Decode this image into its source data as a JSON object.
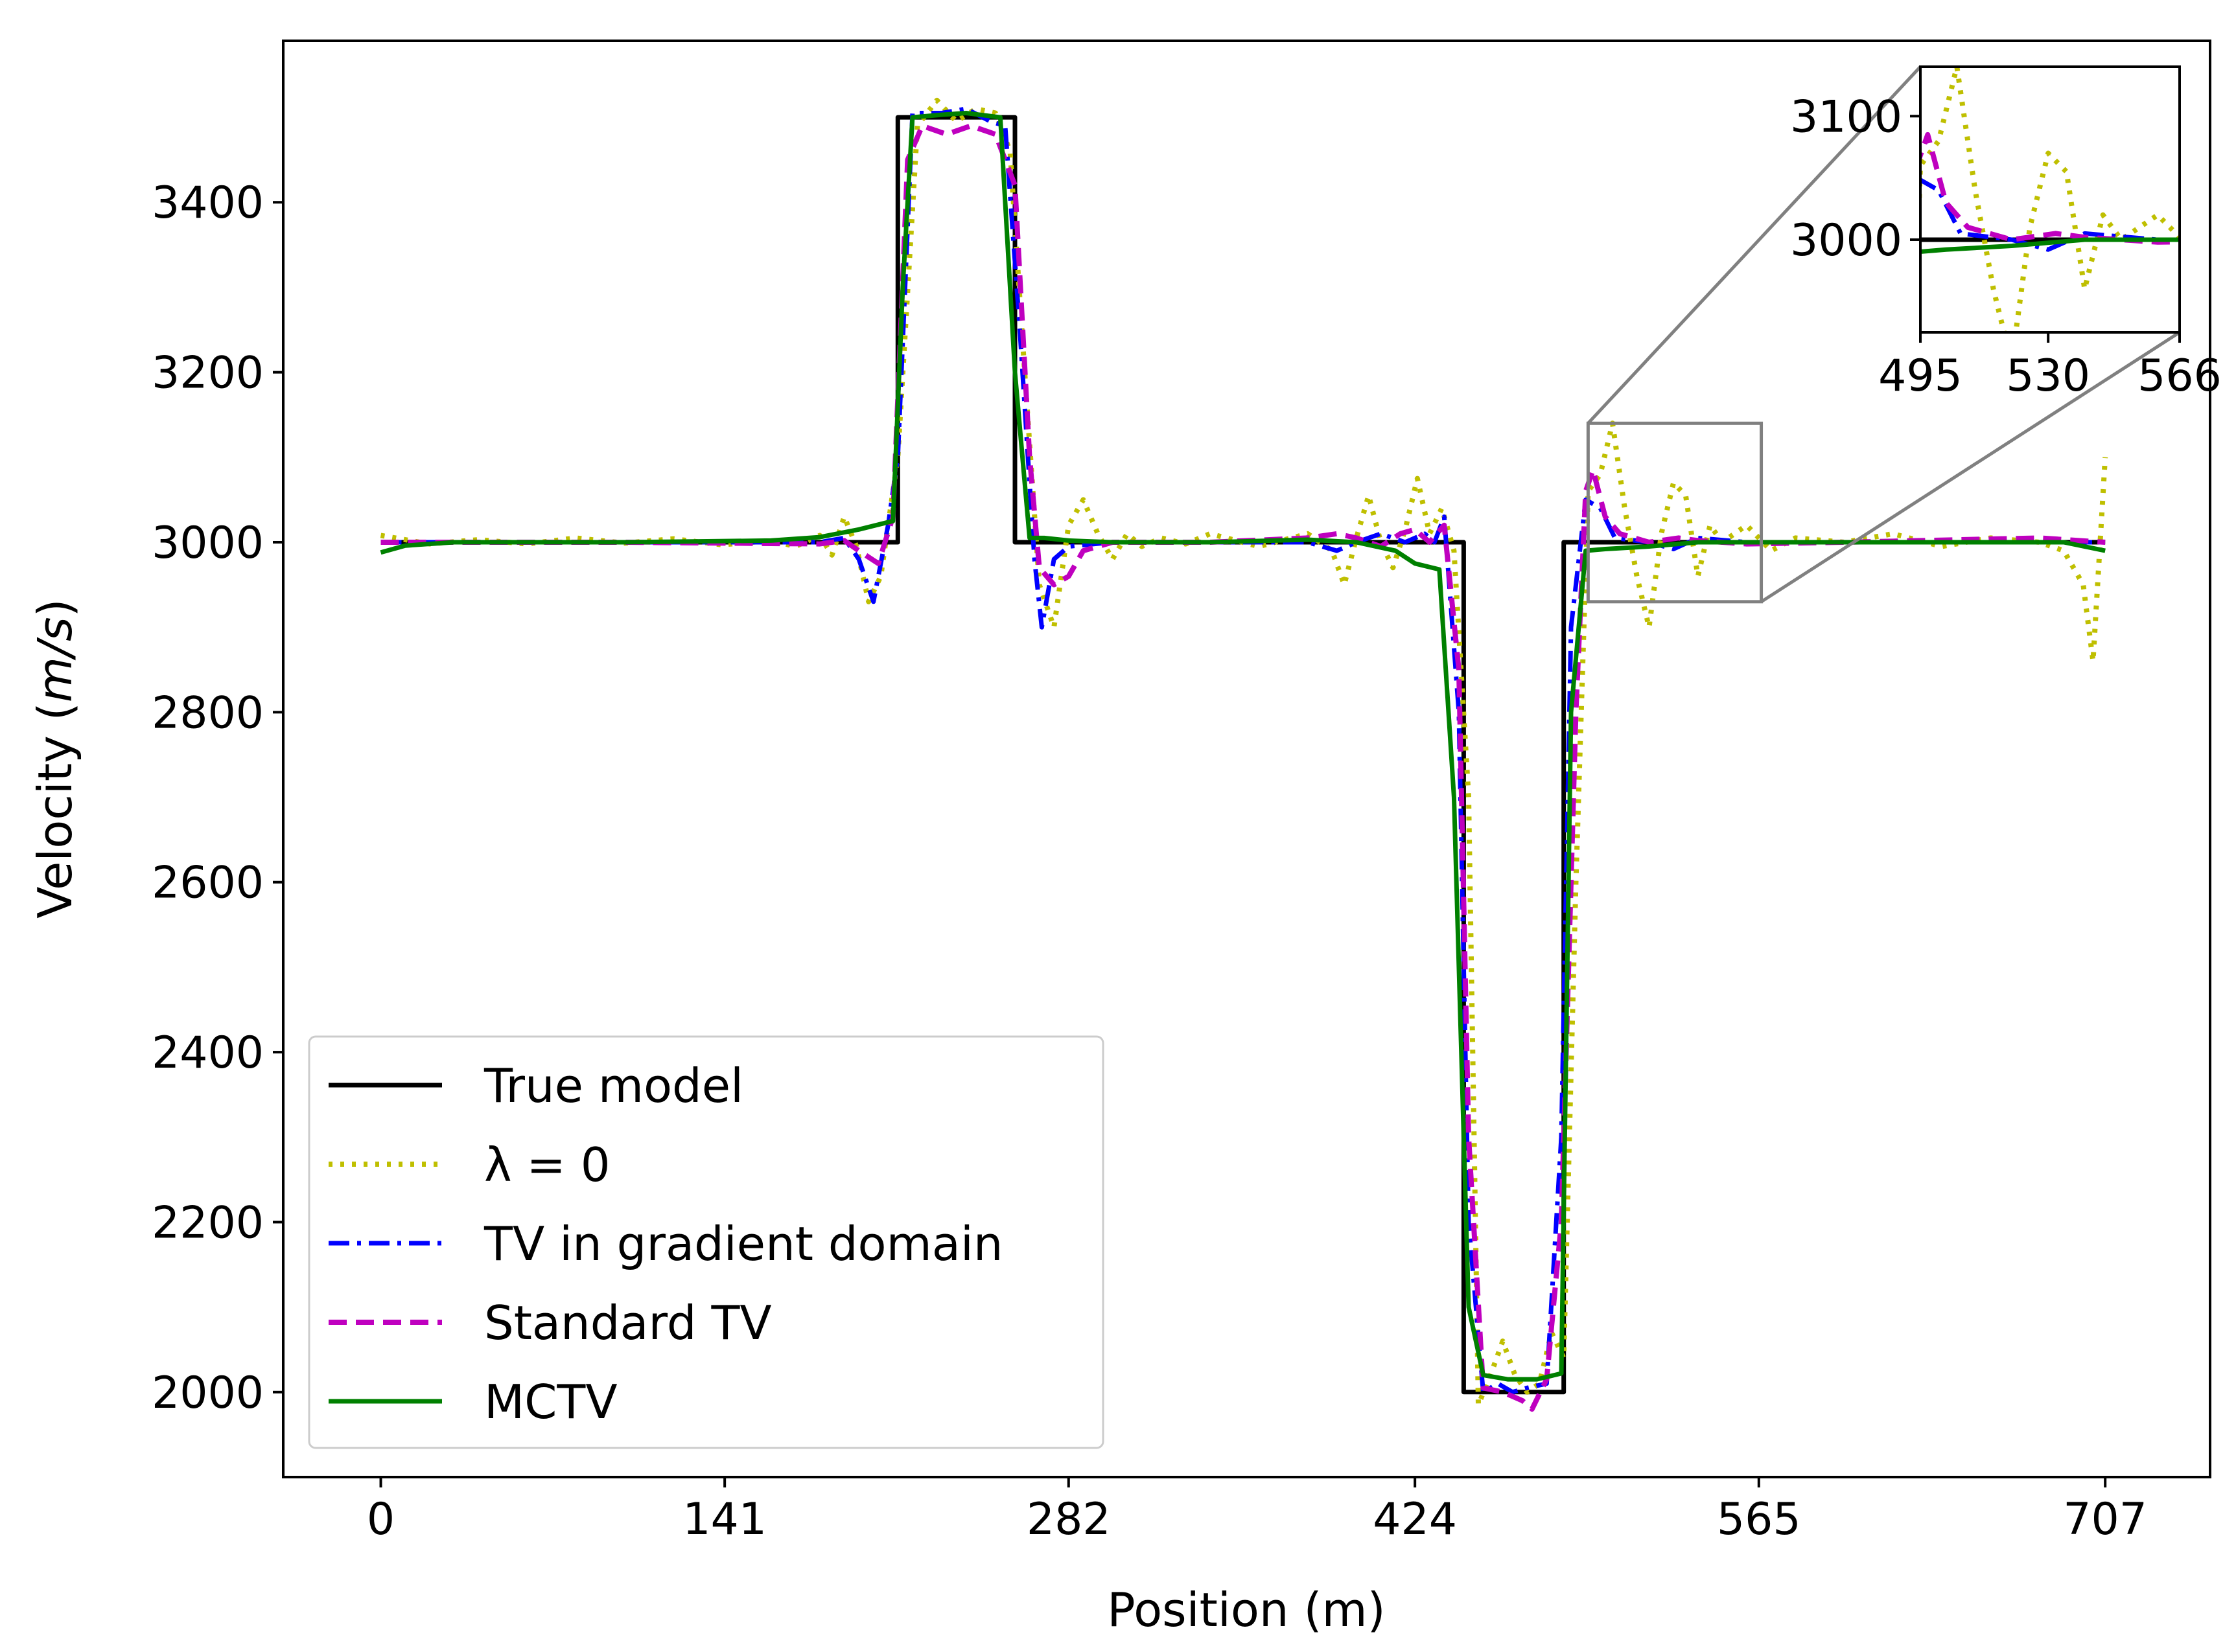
{
  "chart_data": {
    "type": "line",
    "title": "",
    "xlabel": "Position (m)",
    "ylabel": "Velocity (m/s)",
    "ylabel_parts": [
      "Velocity (",
      "m/s",
      ")"
    ],
    "xlim": [
      -40,
      750
    ],
    "ylim": [
      1900,
      3590
    ],
    "x_ticks": [
      0,
      141,
      282,
      424,
      565,
      707
    ],
    "y_ticks": [
      2000,
      2200,
      2400,
      2600,
      2800,
      3000,
      3200,
      3400
    ],
    "grid": false,
    "legend_position": "lower-left",
    "colors": {
      "true_model": "#000000",
      "lambda0": "#bfbf00",
      "tv_gradient": "#0000ff",
      "standard_tv": "#bf00bf",
      "mctv": "#008000"
    },
    "series": [
      {
        "name": "True model",
        "key": "true_model",
        "style": "solid",
        "points": [
          [
            0,
            3000
          ],
          [
            212,
            3000
          ],
          [
            212,
            3500
          ],
          [
            260,
            3500
          ],
          [
            260,
            3000
          ],
          [
            444,
            3000
          ],
          [
            444,
            2000
          ],
          [
            485,
            2000
          ],
          [
            485,
            3000
          ],
          [
            707,
            3000
          ]
        ]
      },
      {
        "name": "λ = 0",
        "key": "lambda0",
        "style": "dotted",
        "points": [
          [
            0,
            3008
          ],
          [
            20,
            2998
          ],
          [
            40,
            3003
          ],
          [
            60,
            2998
          ],
          [
            80,
            3005
          ],
          [
            100,
            2999
          ],
          [
            120,
            3004
          ],
          [
            140,
            2997
          ],
          [
            160,
            3002
          ],
          [
            170,
            2995
          ],
          [
            180,
            3008
          ],
          [
            185,
            2985
          ],
          [
            190,
            3030
          ],
          [
            195,
            2995
          ],
          [
            200,
            2930
          ],
          [
            205,
            2960
          ],
          [
            212,
            3100
          ],
          [
            220,
            3490
          ],
          [
            228,
            3520
          ],
          [
            236,
            3495
          ],
          [
            244,
            3510
          ],
          [
            252,
            3505
          ],
          [
            258,
            3460
          ],
          [
            264,
            3200
          ],
          [
            270,
            2950
          ],
          [
            276,
            2900
          ],
          [
            282,
            3020
          ],
          [
            288,
            3050
          ],
          [
            294,
            3010
          ],
          [
            300,
            2980
          ],
          [
            306,
            3010
          ],
          [
            312,
            2995
          ],
          [
            320,
            3005
          ],
          [
            330,
            2998
          ],
          [
            340,
            3010
          ],
          [
            360,
            2995
          ],
          [
            380,
            3010
          ],
          [
            390,
            2990
          ],
          [
            395,
            2950
          ],
          [
            400,
            3005
          ],
          [
            405,
            3055
          ],
          [
            410,
            3000
          ],
          [
            415,
            2970
          ],
          [
            420,
            3015
          ],
          [
            425,
            3075
          ],
          [
            430,
            3010
          ],
          [
            435,
            3040
          ],
          [
            440,
            2990
          ],
          [
            446,
            2700
          ],
          [
            450,
            1985
          ],
          [
            455,
            2020
          ],
          [
            460,
            2060
          ],
          [
            465,
            2020
          ],
          [
            470,
            2000
          ],
          [
            475,
            2010
          ],
          [
            480,
            2070
          ],
          [
            485,
            2040
          ],
          [
            490,
            2600
          ],
          [
            495,
            3060
          ],
          [
            500,
            3080
          ],
          [
            505,
            3140
          ],
          [
            510,
            3040
          ],
          [
            515,
            2960
          ],
          [
            520,
            2900
          ],
          [
            525,
            3010
          ],
          [
            530,
            3070
          ],
          [
            535,
            3055
          ],
          [
            540,
            2960
          ],
          [
            545,
            3020
          ],
          [
            550,
            3000
          ],
          [
            560,
            3020
          ],
          [
            570,
            2990
          ],
          [
            580,
            3005
          ],
          [
            600,
            3000
          ],
          [
            620,
            3010
          ],
          [
            640,
            2995
          ],
          [
            660,
            3005
          ],
          [
            680,
            3000
          ],
          [
            690,
            2990
          ],
          [
            698,
            2950
          ],
          [
            702,
            2860
          ],
          [
            707,
            3100
          ]
        ]
      },
      {
        "name": "TV in gradient domain",
        "key": "tv_gradient",
        "style": "dashdot",
        "points": [
          [
            0,
            3000
          ],
          [
            100,
            3000
          ],
          [
            180,
            3000
          ],
          [
            190,
            3005
          ],
          [
            196,
            2980
          ],
          [
            202,
            2930
          ],
          [
            208,
            3020
          ],
          [
            212,
            3100
          ],
          [
            218,
            3505
          ],
          [
            230,
            3505
          ],
          [
            240,
            3510
          ],
          [
            250,
            3495
          ],
          [
            256,
            3490
          ],
          [
            262,
            3250
          ],
          [
            268,
            2980
          ],
          [
            271,
            2900
          ],
          [
            276,
            2980
          ],
          [
            282,
            2995
          ],
          [
            300,
            3000
          ],
          [
            340,
            3000
          ],
          [
            380,
            3000
          ],
          [
            392,
            2990
          ],
          [
            400,
            3000
          ],
          [
            410,
            3010
          ],
          [
            420,
            3000
          ],
          [
            428,
            3010
          ],
          [
            432,
            3000
          ],
          [
            436,
            3030
          ],
          [
            442,
            2800
          ],
          [
            446,
            2200
          ],
          [
            452,
            2000
          ],
          [
            458,
            2010
          ],
          [
            464,
            2000
          ],
          [
            470,
            2005
          ],
          [
            478,
            2010
          ],
          [
            484,
            2300
          ],
          [
            488,
            2900
          ],
          [
            494,
            3050
          ],
          [
            500,
            3040
          ],
          [
            506,
            3005
          ],
          [
            520,
            3000
          ],
          [
            530,
            2992
          ],
          [
            540,
            3005
          ],
          [
            560,
            3000
          ],
          [
            600,
            3000
          ],
          [
            707,
            3000
          ]
        ]
      },
      {
        "name": "Standard TV",
        "key": "standard_tv",
        "style": "dashed",
        "points": [
          [
            0,
            3000
          ],
          [
            100,
            3000
          ],
          [
            180,
            2998
          ],
          [
            190,
            3002
          ],
          [
            196,
            2990
          ],
          [
            204,
            2975
          ],
          [
            210,
            3030
          ],
          [
            216,
            3450
          ],
          [
            222,
            3490
          ],
          [
            232,
            3480
          ],
          [
            242,
            3490
          ],
          [
            252,
            3480
          ],
          [
            260,
            3420
          ],
          [
            266,
            3100
          ],
          [
            270,
            2970
          ],
          [
            276,
            2950
          ],
          [
            282,
            2960
          ],
          [
            288,
            2990
          ],
          [
            300,
            3000
          ],
          [
            340,
            3000
          ],
          [
            380,
            3005
          ],
          [
            392,
            3010
          ],
          [
            400,
            3005
          ],
          [
            410,
            2995
          ],
          [
            418,
            3010
          ],
          [
            424,
            3015
          ],
          [
            430,
            3000
          ],
          [
            436,
            3020
          ],
          [
            442,
            2850
          ],
          [
            446,
            2300
          ],
          [
            452,
            2005
          ],
          [
            460,
            2000
          ],
          [
            468,
            1990
          ],
          [
            472,
            1980
          ],
          [
            478,
            2015
          ],
          [
            484,
            2200
          ],
          [
            490,
            2800
          ],
          [
            494,
            3060
          ],
          [
            497,
            3085
          ],
          [
            502,
            3030
          ],
          [
            508,
            3010
          ],
          [
            520,
            3000
          ],
          [
            532,
            3005
          ],
          [
            540,
            3002
          ],
          [
            560,
            2998
          ],
          [
            600,
            3000
          ],
          [
            680,
            3005
          ],
          [
            707,
            3000
          ]
        ]
      },
      {
        "name": "MCTV",
        "key": "mctv",
        "style": "solid",
        "points": [
          [
            0,
            2988
          ],
          [
            10,
            2996
          ],
          [
            30,
            3000
          ],
          [
            100,
            3000
          ],
          [
            160,
            3002
          ],
          [
            180,
            3006
          ],
          [
            196,
            3015
          ],
          [
            210,
            3025
          ],
          [
            214,
            3300
          ],
          [
            218,
            3500
          ],
          [
            230,
            3503
          ],
          [
            240,
            3505
          ],
          [
            254,
            3500
          ],
          [
            260,
            3200
          ],
          [
            266,
            3005
          ],
          [
            272,
            3005
          ],
          [
            282,
            3002
          ],
          [
            300,
            3000
          ],
          [
            340,
            3000
          ],
          [
            380,
            3003
          ],
          [
            400,
            3000
          ],
          [
            416,
            2990
          ],
          [
            424,
            2975
          ],
          [
            434,
            2968
          ],
          [
            440,
            2700
          ],
          [
            446,
            2100
          ],
          [
            452,
            2020
          ],
          [
            462,
            2015
          ],
          [
            474,
            2015
          ],
          [
            484,
            2022
          ],
          [
            488,
            2800
          ],
          [
            494,
            2990
          ],
          [
            502,
            2992
          ],
          [
            520,
            2995
          ],
          [
            540,
            3000
          ],
          [
            600,
            3000
          ],
          [
            660,
            3000
          ],
          [
            690,
            3000
          ],
          [
            707,
            2990
          ]
        ]
      }
    ],
    "inset": {
      "xlim": [
        495,
        566
      ],
      "ylim": [
        2925,
        3140
      ],
      "x_ticks": [
        495,
        530,
        566
      ],
      "y_ticks": [
        3000,
        3100
      ],
      "source_box": {
        "x": [
          495,
          566
        ],
        "y": [
          2930,
          3140
        ]
      }
    }
  }
}
